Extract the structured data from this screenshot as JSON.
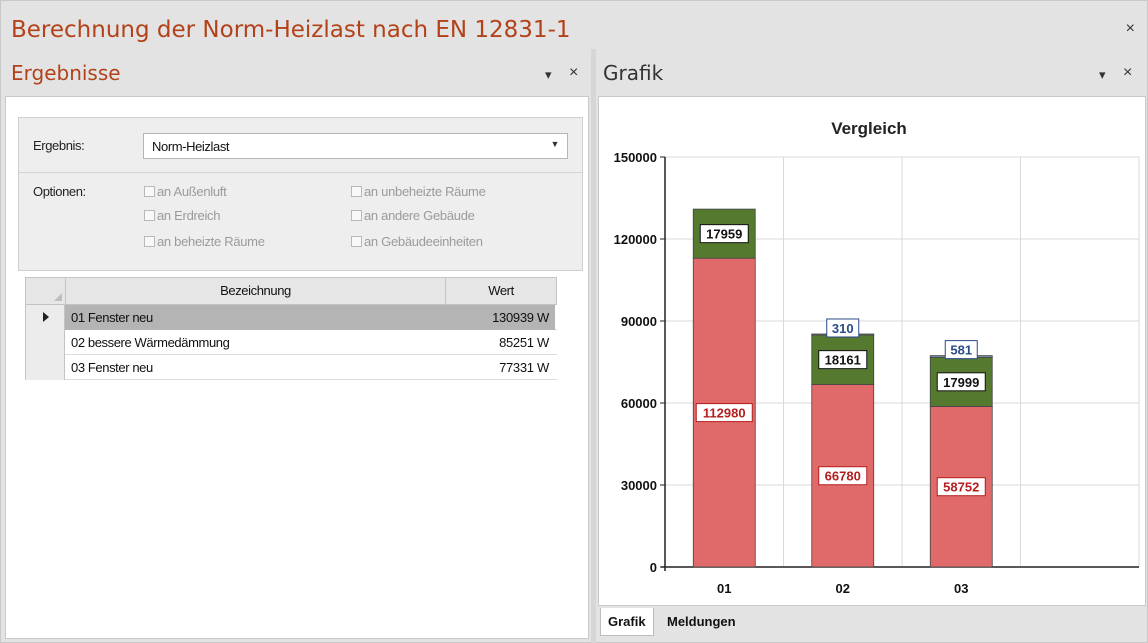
{
  "window": {
    "title": "Berechnung der Norm-Heizlast nach EN 12831-1",
    "close": "×"
  },
  "left_pane": {
    "title": "Ergebnisse",
    "menu": "▾",
    "close": "×",
    "ergebnis_label": "Ergebnis:",
    "ergebnis_value": "Norm-Heizlast",
    "optionen_label": "Optionen:",
    "options": [
      {
        "label": "an Außenluft",
        "checked": false
      },
      {
        "label": "an unbeheizte Räume",
        "checked": false
      },
      {
        "label": "an Erdreich",
        "checked": false
      },
      {
        "label": "an andere Gebäude",
        "checked": false
      },
      {
        "label": "an beheizte Räume",
        "checked": false
      },
      {
        "label": "an Gebäudeeinheiten",
        "checked": false
      }
    ],
    "table": {
      "headers": {
        "name": "Bezeichnung",
        "value": "Wert"
      },
      "rows": [
        {
          "name": "01 Fenster neu",
          "value": "130939 W",
          "selected": true
        },
        {
          "name": "02 bessere Wärmedämmung",
          "value": "85251 W",
          "selected": false
        },
        {
          "name": "03 Fenster neu",
          "value": "77331 W",
          "selected": false
        }
      ]
    }
  },
  "right_pane": {
    "title": "Grafik",
    "menu": "▾",
    "close": "×",
    "tabs": [
      {
        "label": "Grafik",
        "active": true
      },
      {
        "label": "Meldungen",
        "active": false
      }
    ]
  },
  "chart_data": {
    "type": "bar",
    "stacked": true,
    "title": "Vergleich",
    "xlabel": "",
    "ylabel": "",
    "categories": [
      "01",
      "02",
      "03"
    ],
    "ylim": [
      0,
      150000
    ],
    "yticks": [
      0,
      30000,
      60000,
      90000,
      120000,
      150000
    ],
    "grid": true,
    "series": [
      {
        "values": [
          112980,
          66780,
          58752
        ],
        "color": "#e06a6a",
        "label_color": "#b41e1e"
      },
      {
        "values": [
          17959,
          18161,
          17999
        ],
        "color": "#55792f",
        "label_color": "#111111"
      },
      {
        "values": [
          0,
          310,
          581
        ],
        "color": "#7f96c8",
        "label_color": "#2a4a8a"
      }
    ]
  },
  "colors": {
    "title_accent": "#b3421a"
  }
}
